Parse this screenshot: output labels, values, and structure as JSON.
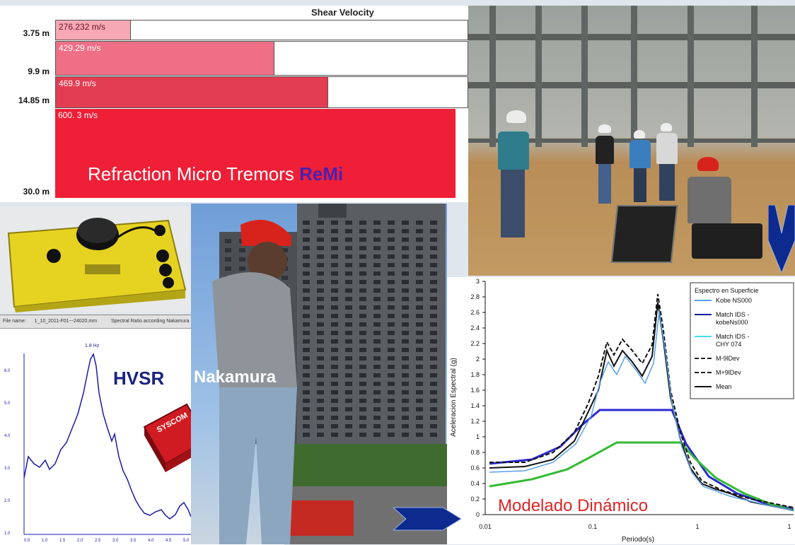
{
  "shear": {
    "title": "Shear Velocity",
    "layers": [
      {
        "depth": "3.75 m",
        "velocity": "276.232 m/s",
        "fraction": 0.18,
        "color": "#f6a9b4"
      },
      {
        "depth": "9.9 m",
        "velocity": "429.29 m/s",
        "fraction": 0.53,
        "color": "#ef6f86"
      },
      {
        "depth": "14.85 m",
        "velocity": "469.9 m/s",
        "fraction": 0.66,
        "color": "#e23d52"
      },
      {
        "depth": "30.0 m",
        "velocity": "600.  3 m/s",
        "fraction": 1.0,
        "color": "#ee1f37"
      }
    ],
    "method": "Refraction Micro Tremors",
    "acronym": "ReMi"
  },
  "hvsr": {
    "title": "HVSR",
    "subtitle": "Nakamura",
    "header_file": "File name:",
    "header_value": "1_10_2011-F01~-24020.mm",
    "header_desc": "Spectral Ratio according Nakamura",
    "peak_label": "1.8 Hz",
    "yticks": [
      "6.0",
      "5.0",
      "4.0",
      "3.0",
      "2.0",
      "1.0"
    ],
    "xticks": [
      "0.5",
      "1.0",
      "1.5",
      "2.0",
      "2.5",
      "3.0",
      "3.5",
      "4.0",
      "4.5",
      "5.0"
    ],
    "device_brand": "SYSCOM",
    "curve_color": "#1a1aa8"
  },
  "spectral": {
    "title": "Modelado Dinámico",
    "ylabel": "Aceleracion Espectral (g)",
    "xlabel": "Periodo(s)",
    "yticks": [
      "0",
      "0.2",
      "0.4",
      "0.6",
      "0.8",
      "1",
      "1.2",
      "1.4",
      "1.6",
      "1.8",
      "2",
      "2.2",
      "2.4",
      "2.6",
      "2.8",
      "3"
    ],
    "xticks": [
      "0.01",
      "0.1",
      "1",
      "1"
    ],
    "legend_title": "Espectro en Superficie",
    "legend": [
      {
        "name": "Kobe NS000",
        "color": "#5aa0e8",
        "dash": ""
      },
      {
        "name": "Match IDS -",
        "name2": "kobeNs000",
        "color": "#1a1aa8",
        "dash": ""
      },
      {
        "name": "Match IDS -",
        "name2": "CHY 074",
        "color": "#44ddee",
        "dash": ""
      },
      {
        "name": "M-9lDev",
        "color": "#222222",
        "dash": "6,3"
      },
      {
        "name": "M+9lDev",
        "color": "#222222",
        "dash": "6,3"
      },
      {
        "name": "Mean",
        "color": "#111111",
        "dash": ""
      }
    ]
  },
  "colors": {
    "arrow": "#0d2a8f",
    "helmet": "#e8e8e8",
    "red_helmet": "#d8231d"
  }
}
